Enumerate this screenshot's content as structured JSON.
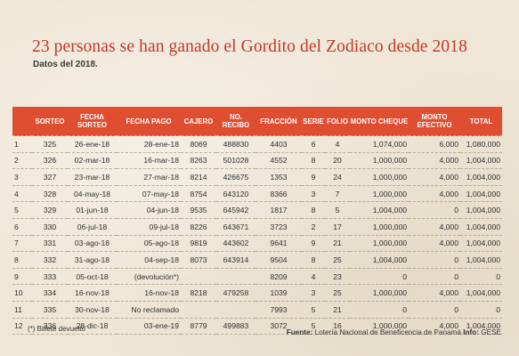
{
  "title": "23 personas se han ganado el Gordito del Zodiaco desde 2018",
  "subtitle": "Datos del 2018.",
  "table": {
    "headers": [
      {
        "key": "num",
        "label": ""
      },
      {
        "key": "sorteo",
        "label": "SORTEO"
      },
      {
        "key": "fecha_sorteo",
        "label": "FECHA SORTEO"
      },
      {
        "key": "fecha_pago",
        "label": "FECHA PAGO"
      },
      {
        "key": "cajero",
        "label": "CAJERO"
      },
      {
        "key": "recibo",
        "label": "NO. RECIBO"
      },
      {
        "key": "fraccion",
        "label": "FRACCIÓN"
      },
      {
        "key": "serie",
        "label": "SERIE"
      },
      {
        "key": "folio",
        "label": "FOLIO"
      },
      {
        "key": "cheque",
        "label": "MONTO CHEQUE"
      },
      {
        "key": "efectivo",
        "label": "MONTO EFECTIVO"
      },
      {
        "key": "total",
        "label": "TOTAL"
      }
    ],
    "rows": [
      [
        "1",
        "325",
        "26-ene-18",
        "28-ene-18",
        "8069",
        "488830",
        "4403",
        "6",
        "4",
        "1,074,000",
        "6,000",
        "1,080,000"
      ],
      [
        "2",
        "326",
        "02-mar-18",
        "16-mar-18",
        "8263",
        "501028",
        "4552",
        "8",
        "20",
        "1,000,000",
        "4,000",
        "1,004,000"
      ],
      [
        "3",
        "327",
        "23-mar-18",
        "27-mar-18",
        "8214",
        "426675",
        "1353",
        "9",
        "24",
        "1,000,000",
        "4,000",
        "1,004,000"
      ],
      [
        "4",
        "328",
        "04-may-18",
        "07-may-18",
        "8754",
        "643120",
        "8366",
        "3",
        "7",
        "1,000,000",
        "4,000",
        "1,004,000"
      ],
      [
        "5",
        "329",
        "01-jun-18",
        "04-jun-18",
        "9535",
        "645942",
        "1817",
        "8",
        "5",
        "1,004,000",
        "0",
        "1,004,000"
      ],
      [
        "6",
        "330",
        "06-jul-18",
        "09-jul-18",
        "8226",
        "643671",
        "3723",
        "2",
        "17",
        "1,000,000",
        "4,000",
        "1,004,000"
      ],
      [
        "7",
        "331",
        "03-ago-18",
        "05-ago-18",
        "9819",
        "443602",
        "9641",
        "9",
        "21",
        "1,000,000",
        "4,000",
        "1,004,000"
      ],
      [
        "8",
        "332",
        "31-ago-18",
        "04-sep-18",
        "8073",
        "643914",
        "9504",
        "8",
        "25",
        "1,004,000",
        "0",
        "1,004,000"
      ],
      [
        "9",
        "333",
        "05-oct-18",
        "(devolución*)",
        "",
        "",
        "8209",
        "4",
        "23",
        "0",
        "0",
        "0"
      ],
      [
        "10",
        "334",
        "16-nov-18",
        "16-nov-18",
        "8218",
        "479258",
        "1039",
        "3",
        "25",
        "1,000,000",
        "4,000",
        "1,004,000"
      ],
      [
        "11",
        "335",
        "30-nov-18",
        "No reclamado",
        "",
        "",
        "7993",
        "5",
        "21",
        "0",
        "0",
        "0"
      ],
      [
        "12",
        "336",
        "28-dic-18",
        "03-ene-19",
        "8779",
        "499883",
        "3072",
        "5",
        "16",
        "1,000,000",
        "4,000",
        "1,004,000"
      ]
    ]
  },
  "footer": {
    "note": "(*) Billete devuelto",
    "source_label": "Fuente:",
    "source_text": "Lotería Nacional de Beneficencia de Panamá",
    "info_label": "Info:",
    "info_text": "GESE"
  },
  "colors": {
    "accent": "#e04e31",
    "title": "#c0392b",
    "background": "#efe6d6"
  }
}
